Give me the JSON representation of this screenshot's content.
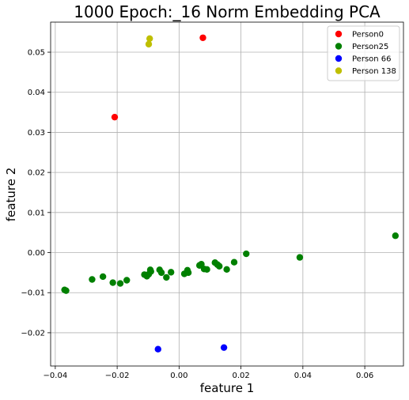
{
  "chart_data": {
    "type": "scatter",
    "title": "1000 Epoch:_16 Norm Embedding PCA",
    "xlabel": "feature 1",
    "ylabel": "feature 2",
    "xlim": [
      -0.0415,
      0.0725
    ],
    "ylim": [
      -0.0283,
      0.0575
    ],
    "xticks": [
      -0.04,
      -0.02,
      0.0,
      0.02,
      0.04,
      0.06
    ],
    "xtick_labels": [
      "−0.04",
      "−0.02",
      "0.00",
      "0.02",
      "0.04",
      "0.06"
    ],
    "yticks": [
      -0.02,
      -0.01,
      0.0,
      0.01,
      0.02,
      0.03,
      0.04,
      0.05
    ],
    "ytick_labels": [
      "−0.02",
      "−0.01",
      "0.00",
      "0.01",
      "0.02",
      "0.03",
      "0.04",
      "0.05"
    ],
    "grid": true,
    "legend_position": "top-right",
    "series": [
      {
        "name": "Person0",
        "color": "#ff0000",
        "points": [
          [
            -0.0208,
            0.0338
          ],
          [
            0.0077,
            0.0536
          ]
        ]
      },
      {
        "name": "Person25",
        "color": "#008000",
        "points": [
          [
            -0.037,
            -0.0093
          ],
          [
            -0.0365,
            -0.0095
          ],
          [
            -0.0281,
            -0.0067
          ],
          [
            -0.0246,
            -0.006
          ],
          [
            -0.0214,
            -0.0075
          ],
          [
            -0.019,
            -0.0077
          ],
          [
            -0.0169,
            -0.0069
          ],
          [
            -0.0112,
            -0.0055
          ],
          [
            -0.0104,
            -0.0059
          ],
          [
            -0.0098,
            -0.0054
          ],
          [
            -0.0093,
            -0.0043
          ],
          [
            -0.0091,
            -0.0047
          ],
          [
            -0.0063,
            -0.0043
          ],
          [
            -0.0057,
            -0.005
          ],
          [
            -0.0041,
            -0.0062
          ],
          [
            -0.0026,
            -0.0049
          ],
          [
            0.0017,
            -0.0053
          ],
          [
            0.0027,
            -0.0044
          ],
          [
            0.003,
            -0.005
          ],
          [
            0.0066,
            -0.0032
          ],
          [
            0.0072,
            -0.0029
          ],
          [
            0.0081,
            -0.0041
          ],
          [
            0.009,
            -0.0042
          ],
          [
            0.0116,
            -0.0025
          ],
          [
            0.0124,
            -0.003
          ],
          [
            0.013,
            -0.0034
          ],
          [
            0.0154,
            -0.0042
          ],
          [
            0.0178,
            -0.0024
          ],
          [
            0.0217,
            -0.0003
          ],
          [
            0.039,
            -0.0012
          ],
          [
            0.0699,
            0.0042
          ]
        ]
      },
      {
        "name": "Person 66",
        "color": "#0000ff",
        "points": [
          [
            -0.0068,
            -0.0241
          ],
          [
            0.0145,
            -0.0237
          ]
        ]
      },
      {
        "name": "Person 138",
        "color": "#bfbf00",
        "points": [
          [
            -0.0095,
            0.0534
          ],
          [
            -0.0098,
            0.052
          ]
        ]
      }
    ]
  }
}
